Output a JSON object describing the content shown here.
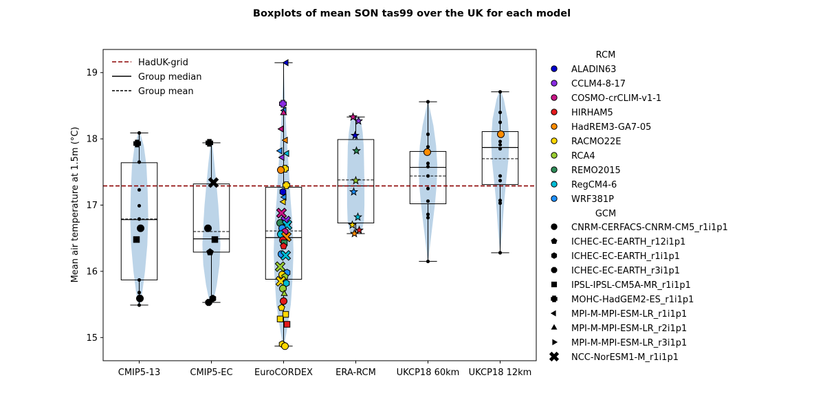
{
  "chart_data": {
    "type": "violin-box",
    "title": "Boxplots of mean SON tas99 over the UK for each model",
    "xlabel": "",
    "ylabel": "Mean air temperature at 1.5m (°C)",
    "ylim": [
      14.65,
      19.35
    ],
    "yticks": [
      15,
      16,
      17,
      18,
      19
    ],
    "reference_line": {
      "label": "HadUK-grid",
      "value": 17.29,
      "color": "#8b0000"
    },
    "legend_lines": [
      {
        "label": "HadUK-grid",
        "style": "dash-red"
      },
      {
        "label": "Group median",
        "style": "solid"
      },
      {
        "label": "Group mean",
        "style": "dash"
      }
    ],
    "violin_color": "#bcd4e8",
    "groups": [
      {
        "name": "CMIP5-13",
        "q1": 15.87,
        "median": 16.78,
        "mean": 16.79,
        "q3": 17.64,
        "min": 15.49,
        "max": 18.09,
        "violin": [
          [
            15.49,
            0.05
          ],
          [
            15.7,
            0.18
          ],
          [
            16.0,
            0.32
          ],
          [
            16.4,
            0.45
          ],
          [
            16.8,
            0.5
          ],
          [
            17.2,
            0.47
          ],
          [
            17.6,
            0.4
          ],
          [
            17.9,
            0.25
          ],
          [
            18.09,
            0.05
          ]
        ]
      },
      {
        "name": "CMIP5-EC",
        "q1": 16.29,
        "median": 16.49,
        "mean": 16.6,
        "q3": 17.32,
        "min": 15.53,
        "max": 17.94,
        "violin": [
          [
            15.53,
            0.1
          ],
          [
            15.8,
            0.3
          ],
          [
            16.1,
            0.45
          ],
          [
            16.4,
            0.5
          ],
          [
            16.7,
            0.45
          ],
          [
            17.0,
            0.38
          ],
          [
            17.3,
            0.28
          ],
          [
            17.6,
            0.18
          ],
          [
            17.94,
            0.04
          ]
        ]
      },
      {
        "name": "EuroCORDEX",
        "q1": 15.88,
        "median": 16.51,
        "mean": 16.61,
        "q3": 17.27,
        "min": 14.87,
        "max": 19.15,
        "violin": [
          [
            14.87,
            0.02
          ],
          [
            15.1,
            0.18
          ],
          [
            15.5,
            0.4
          ],
          [
            15.9,
            0.5
          ],
          [
            16.3,
            0.55
          ],
          [
            16.7,
            0.5
          ],
          [
            17.1,
            0.38
          ],
          [
            17.5,
            0.3
          ],
          [
            17.9,
            0.2
          ],
          [
            18.4,
            0.1
          ],
          [
            18.8,
            0.04
          ],
          [
            19.15,
            0.0
          ]
        ]
      },
      {
        "name": "ERA-RCM",
        "q1": 16.73,
        "median": 17.29,
        "mean": 17.38,
        "q3": 17.99,
        "min": 16.57,
        "max": 18.33,
        "violin": [
          [
            16.57,
            0.3
          ],
          [
            16.75,
            0.45
          ],
          [
            17.0,
            0.48
          ],
          [
            17.3,
            0.48
          ],
          [
            17.6,
            0.46
          ],
          [
            17.9,
            0.44
          ],
          [
            18.1,
            0.38
          ],
          [
            18.33,
            0.25
          ]
        ]
      },
      {
        "name": "UKCP18 60km",
        "q1": 17.02,
        "median": 17.57,
        "mean": 17.44,
        "q3": 17.81,
        "min": 16.15,
        "max": 18.56,
        "violin": [
          [
            16.15,
            0.02
          ],
          [
            16.4,
            0.12
          ],
          [
            16.7,
            0.25
          ],
          [
            17.0,
            0.38
          ],
          [
            17.3,
            0.48
          ],
          [
            17.6,
            0.52
          ],
          [
            17.9,
            0.45
          ],
          [
            18.2,
            0.3
          ],
          [
            18.56,
            0.02
          ]
        ]
      },
      {
        "name": "UKCP18 12km",
        "q1": 17.31,
        "median": 17.87,
        "mean": 17.7,
        "q3": 18.11,
        "min": 16.28,
        "max": 18.71,
        "violin": [
          [
            16.28,
            0.0
          ],
          [
            16.5,
            0.08
          ],
          [
            16.8,
            0.16
          ],
          [
            17.1,
            0.24
          ],
          [
            17.4,
            0.35
          ],
          [
            17.7,
            0.46
          ],
          [
            18.0,
            0.5
          ],
          [
            18.3,
            0.42
          ],
          [
            18.6,
            0.2
          ],
          [
            18.71,
            0.05
          ]
        ]
      }
    ],
    "points": [
      {
        "g": 0,
        "y": 18.09,
        "m": "dot"
      },
      {
        "g": 0,
        "y": 17.93,
        "m": "plus",
        "c": "#000000"
      },
      {
        "g": 0,
        "y": 17.65,
        "m": "dot"
      },
      {
        "g": 0,
        "y": 17.23,
        "m": "dot"
      },
      {
        "g": 0,
        "y": 16.99,
        "m": "dot"
      },
      {
        "g": 0,
        "y": 16.79,
        "m": "dot"
      },
      {
        "g": 0,
        "y": 16.65,
        "m": "circle",
        "c": "#000000"
      },
      {
        "g": 0,
        "y": 16.48,
        "m": "square",
        "c": "#000000"
      },
      {
        "g": 0,
        "y": 15.87,
        "m": "dot"
      },
      {
        "g": 0,
        "y": 15.68,
        "m": "dot"
      },
      {
        "g": 0,
        "y": 15.59,
        "m": "circle",
        "c": "#000000"
      },
      {
        "g": 0,
        "y": 15.49,
        "m": "dot"
      },
      {
        "g": 1,
        "y": 17.94,
        "m": "plus",
        "c": "#000000"
      },
      {
        "g": 1,
        "y": 17.34,
        "m": "x",
        "c": "#000000"
      },
      {
        "g": 1,
        "y": 16.65,
        "m": "circle",
        "c": "#000000"
      },
      {
        "g": 1,
        "y": 16.48,
        "m": "square",
        "c": "#000000"
      },
      {
        "g": 1,
        "y": 16.29,
        "m": "pentagon",
        "c": "#000000"
      },
      {
        "g": 1,
        "y": 15.59,
        "m": "hexagon",
        "c": "#000000"
      },
      {
        "g": 1,
        "y": 15.53,
        "m": "octagon",
        "c": "#000000"
      },
      {
        "g": 2,
        "y": 19.15,
        "m": "tri-left",
        "c": "#0000cd"
      },
      {
        "g": 2,
        "y": 18.53,
        "m": "plus",
        "c": "#8a2be2"
      },
      {
        "g": 2,
        "y": 18.43,
        "m": "tri-left",
        "c": "#1e90ff"
      },
      {
        "g": 2,
        "y": 18.39,
        "m": "tri-up",
        "c": "#c71585"
      },
      {
        "g": 2,
        "y": 18.15,
        "m": "tri-left",
        "c": "#c71585"
      },
      {
        "g": 2,
        "y": 17.98,
        "m": "tri-left",
        "c": "#ff8c00"
      },
      {
        "g": 2,
        "y": 17.82,
        "m": "tri-left",
        "c": "#1e90ff"
      },
      {
        "g": 2,
        "y": 17.78,
        "m": "tri-left",
        "c": "#00bcd4"
      },
      {
        "g": 2,
        "y": 17.72,
        "m": "tri-left",
        "c": "#8a2be2"
      },
      {
        "g": 2,
        "y": 17.55,
        "m": "plus",
        "c": "#ffd700"
      },
      {
        "g": 2,
        "y": 17.53,
        "m": "circle",
        "c": "#ff8c00"
      },
      {
        "g": 2,
        "y": 17.3,
        "m": "plus",
        "c": "#ffd700"
      },
      {
        "g": 2,
        "y": 17.2,
        "m": "hexagon",
        "c": "#0000cd"
      },
      {
        "g": 2,
        "y": 17.12,
        "m": "tri-left",
        "c": "#1e90ff"
      },
      {
        "g": 2,
        "y": 17.05,
        "m": "tri-left",
        "c": "#ffd700"
      },
      {
        "g": 2,
        "y": 16.88,
        "m": "x",
        "c": "#c71585"
      },
      {
        "g": 2,
        "y": 16.76,
        "m": "x",
        "c": "#8a2be2"
      },
      {
        "g": 2,
        "y": 16.73,
        "m": "circle",
        "c": "#2e8b57"
      },
      {
        "g": 2,
        "y": 16.7,
        "m": "x",
        "c": "#00bcd4"
      },
      {
        "g": 2,
        "y": 16.65,
        "m": "circle",
        "c": "#1e90ff"
      },
      {
        "g": 2,
        "y": 16.6,
        "m": "hexagon",
        "c": "#c71585"
      },
      {
        "g": 2,
        "y": 16.56,
        "m": "circle",
        "c": "#00bcd4"
      },
      {
        "g": 2,
        "y": 16.52,
        "m": "x",
        "c": "#ff8c00"
      },
      {
        "g": 2,
        "y": 16.47,
        "m": "circle",
        "c": "#e41a1c"
      },
      {
        "g": 2,
        "y": 16.43,
        "m": "square",
        "c": "#2e8b57"
      },
      {
        "g": 2,
        "y": 16.38,
        "m": "pentagon",
        "c": "#e41a1c"
      },
      {
        "g": 2,
        "y": 16.26,
        "m": "circle",
        "c": "#1e90ff"
      },
      {
        "g": 2,
        "y": 16.24,
        "m": "x",
        "c": "#00bcd4"
      },
      {
        "g": 2,
        "y": 16.07,
        "m": "x",
        "c": "#9acd32"
      },
      {
        "g": 2,
        "y": 15.98,
        "m": "hexagon",
        "c": "#1e90ff"
      },
      {
        "g": 2,
        "y": 15.95,
        "m": "circle",
        "c": "#ffd700"
      },
      {
        "g": 2,
        "y": 15.92,
        "m": "pentagon",
        "c": "#9acd32"
      },
      {
        "g": 2,
        "y": 15.85,
        "m": "x",
        "c": "#ffd700"
      },
      {
        "g": 2,
        "y": 15.82,
        "m": "hexagon",
        "c": "#00bcd4"
      },
      {
        "g": 2,
        "y": 15.74,
        "m": "circle",
        "c": "#9acd32"
      },
      {
        "g": 2,
        "y": 15.66,
        "m": "tri-up",
        "c": "#9acd32"
      },
      {
        "g": 2,
        "y": 15.55,
        "m": "circle",
        "c": "#e41a1c"
      },
      {
        "g": 2,
        "y": 15.45,
        "m": "pentagon",
        "c": "#ffd700"
      },
      {
        "g": 2,
        "y": 15.35,
        "m": "square",
        "c": "#ffd700"
      },
      {
        "g": 2,
        "y": 15.28,
        "m": "square",
        "c": "#ffd700"
      },
      {
        "g": 2,
        "y": 15.2,
        "m": "square",
        "c": "#e41a1c"
      },
      {
        "g": 2,
        "y": 14.9,
        "m": "hexagon",
        "c": "#ffd700"
      },
      {
        "g": 2,
        "y": 14.87,
        "m": "circle",
        "c": "#ffd700"
      },
      {
        "g": 3,
        "y": 18.33,
        "m": "star",
        "c": "#c71585"
      },
      {
        "g": 3,
        "y": 18.27,
        "m": "star",
        "c": "#8a2be2"
      },
      {
        "g": 3,
        "y": 18.05,
        "m": "star",
        "c": "#0000cd"
      },
      {
        "g": 3,
        "y": 17.82,
        "m": "star",
        "c": "#2e8b57"
      },
      {
        "g": 3,
        "y": 17.37,
        "m": "star",
        "c": "#9acd32"
      },
      {
        "g": 3,
        "y": 17.2,
        "m": "star",
        "c": "#1e90ff"
      },
      {
        "g": 3,
        "y": 16.82,
        "m": "star",
        "c": "#00bcd4"
      },
      {
        "g": 3,
        "y": 16.7,
        "m": "star",
        "c": "#ffd700"
      },
      {
        "g": 3,
        "y": 16.62,
        "m": "star",
        "c": "#e41a1c"
      },
      {
        "g": 3,
        "y": 16.57,
        "m": "star",
        "c": "#ff8c00"
      },
      {
        "g": 4,
        "y": 18.56,
        "m": "dot"
      },
      {
        "g": 4,
        "y": 18.07,
        "m": "dot"
      },
      {
        "g": 4,
        "y": 17.88,
        "m": "dot"
      },
      {
        "g": 4,
        "y": 17.8,
        "m": "circle",
        "c": "#ff8c00"
      },
      {
        "g": 4,
        "y": 17.63,
        "m": "dot"
      },
      {
        "g": 4,
        "y": 17.58,
        "m": "dot"
      },
      {
        "g": 4,
        "y": 17.44,
        "m": "dot"
      },
      {
        "g": 4,
        "y": 17.25,
        "m": "dot"
      },
      {
        "g": 4,
        "y": 17.06,
        "m": "dot"
      },
      {
        "g": 4,
        "y": 16.86,
        "m": "dot"
      },
      {
        "g": 4,
        "y": 16.81,
        "m": "dot"
      },
      {
        "g": 4,
        "y": 16.15,
        "m": "dot"
      },
      {
        "g": 5,
        "y": 18.71,
        "m": "dot"
      },
      {
        "g": 5,
        "y": 18.4,
        "m": "dot"
      },
      {
        "g": 5,
        "y": 18.25,
        "m": "dot"
      },
      {
        "g": 5,
        "y": 18.07,
        "m": "circle",
        "c": "#ff8c00"
      },
      {
        "g": 5,
        "y": 17.96,
        "m": "dot"
      },
      {
        "g": 5,
        "y": 17.91,
        "m": "dot"
      },
      {
        "g": 5,
        "y": 17.85,
        "m": "dot"
      },
      {
        "g": 5,
        "y": 17.44,
        "m": "dot"
      },
      {
        "g": 5,
        "y": 17.37,
        "m": "dot"
      },
      {
        "g": 5,
        "y": 17.07,
        "m": "dot"
      },
      {
        "g": 5,
        "y": 17.03,
        "m": "dot"
      },
      {
        "g": 5,
        "y": 16.28,
        "m": "dot"
      }
    ],
    "legend": {
      "rcm_title": "RCM",
      "rcm": [
        {
          "label": "ALADIN63",
          "color": "#0000cd"
        },
        {
          "label": "CCLM4-8-17",
          "color": "#8a2be2"
        },
        {
          "label": "COSMO-crCLIM-v1-1",
          "color": "#c71585"
        },
        {
          "label": "HIRHAM5",
          "color": "#e41a1c"
        },
        {
          "label": "HadREM3-GA7-05",
          "color": "#ff8c00"
        },
        {
          "label": "RACMO22E",
          "color": "#ffd700"
        },
        {
          "label": "RCA4",
          "color": "#9acd32"
        },
        {
          "label": "REMO2015",
          "color": "#2e8b57"
        },
        {
          "label": "RegCM4-6",
          "color": "#00bcd4"
        },
        {
          "label": "WRF381P",
          "color": "#1e90ff"
        }
      ],
      "gcm_title": "GCM",
      "gcm": [
        {
          "label": "CNRM-CERFACS-CNRM-CM5_r1i1p1",
          "marker": "circle"
        },
        {
          "label": "ICHEC-EC-EARTH_r12i1p1",
          "marker": "pentagon"
        },
        {
          "label": "ICHEC-EC-EARTH_r1i1p1",
          "marker": "hexagon"
        },
        {
          "label": "ICHEC-EC-EARTH_r3i1p1",
          "marker": "octagon"
        },
        {
          "label": "IPSL-IPSL-CM5A-MR_r1i1p1",
          "marker": "square"
        },
        {
          "label": "MOHC-HadGEM2-ES_r1i1p1",
          "marker": "plus"
        },
        {
          "label": "MPI-M-MPI-ESM-LR_r1i1p1",
          "marker": "tri-left"
        },
        {
          "label": "MPI-M-MPI-ESM-LR_r2i1p1",
          "marker": "tri-up"
        },
        {
          "label": "MPI-M-MPI-ESM-LR_r3i1p1",
          "marker": "tri-right"
        },
        {
          "label": "NCC-NorESM1-M_r1i1p1",
          "marker": "x"
        }
      ]
    }
  }
}
